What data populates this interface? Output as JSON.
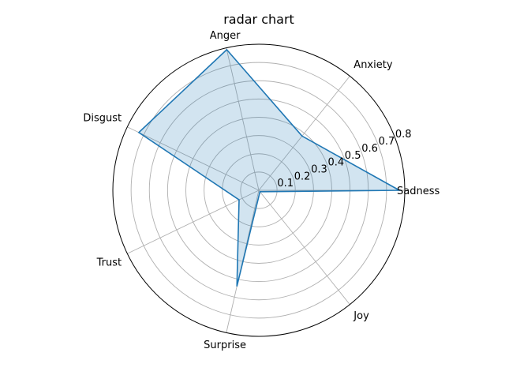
{
  "chart_data": {
    "type": "radar",
    "title": "radar chart",
    "categories": [
      "Sadness",
      "Anxiety",
      "Anger",
      "Disgust",
      "Trust",
      "Surprise",
      "Joy"
    ],
    "values": [
      0.77,
      0.38,
      0.79,
      0.73,
      0.12,
      0.54,
      0.01
    ],
    "radial_range": [
      0,
      0.8
    ],
    "radial_ticks": [
      0.1,
      0.2,
      0.3,
      0.4,
      0.5,
      0.6,
      0.7,
      0.8
    ],
    "radial_tick_labels": [
      "0.1",
      "0.2",
      "0.3",
      "0.4",
      "0.5",
      "0.6",
      "0.7",
      "0.8"
    ],
    "grid": true,
    "line_color": "#1f77b4",
    "fill_color": "#1f77b4",
    "fill_opacity": 0.2,
    "grid_color": "#b0b0b0",
    "outline_color": "#000000"
  }
}
